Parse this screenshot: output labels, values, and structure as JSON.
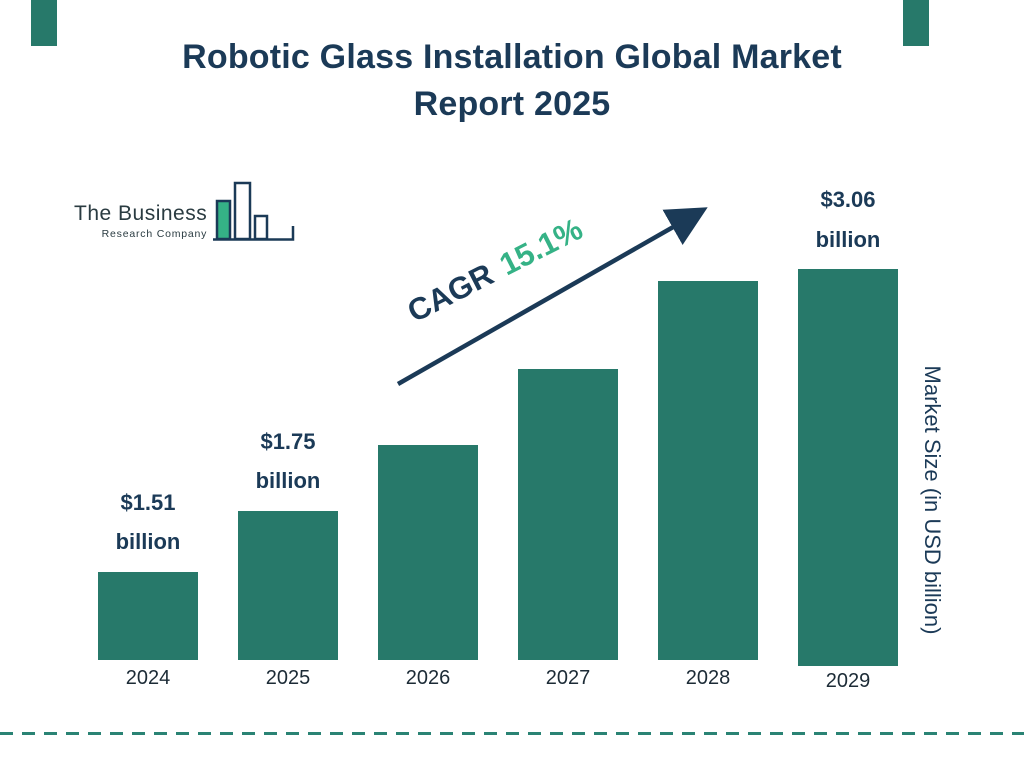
{
  "header": {
    "title_lines": [
      "Robotic Glass Installation Global Market",
      "Report 2025"
    ]
  },
  "logo": {
    "name_line1": "The Business",
    "name_line2": "Research Company"
  },
  "annotation": {
    "cagr_label": "CAGR",
    "cagr_value": "15.1%"
  },
  "axes": {
    "y_label": "Market Size (in USD billion)"
  },
  "colors": {
    "bar": "#27796a",
    "navy": "#1b3a57",
    "green": "#35b286",
    "dashed_line": "#2a8374"
  },
  "chart_data": {
    "type": "bar",
    "title": "Robotic Glass Installation Global Market Report 2025",
    "categories": [
      "2024",
      "2025",
      "2026",
      "2027",
      "2028",
      "2029"
    ],
    "values": [
      1.51,
      1.75,
      2.01,
      2.31,
      2.66,
      3.06
    ],
    "unit": "USD billion",
    "ylabel": "Market Size (in USD billion)",
    "bar_labels": [
      {
        "index": 0,
        "amount": "$1.51",
        "unit": "billion"
      },
      {
        "index": 1,
        "amount": "$1.75",
        "unit": "billion"
      },
      {
        "index": 5,
        "amount": "$3.06",
        "unit": "billion"
      }
    ],
    "cagr": "15.1%",
    "ylim": [
      1.16,
      3.06
    ],
    "grid": false,
    "legend": false,
    "bar_color": "#27796a"
  }
}
